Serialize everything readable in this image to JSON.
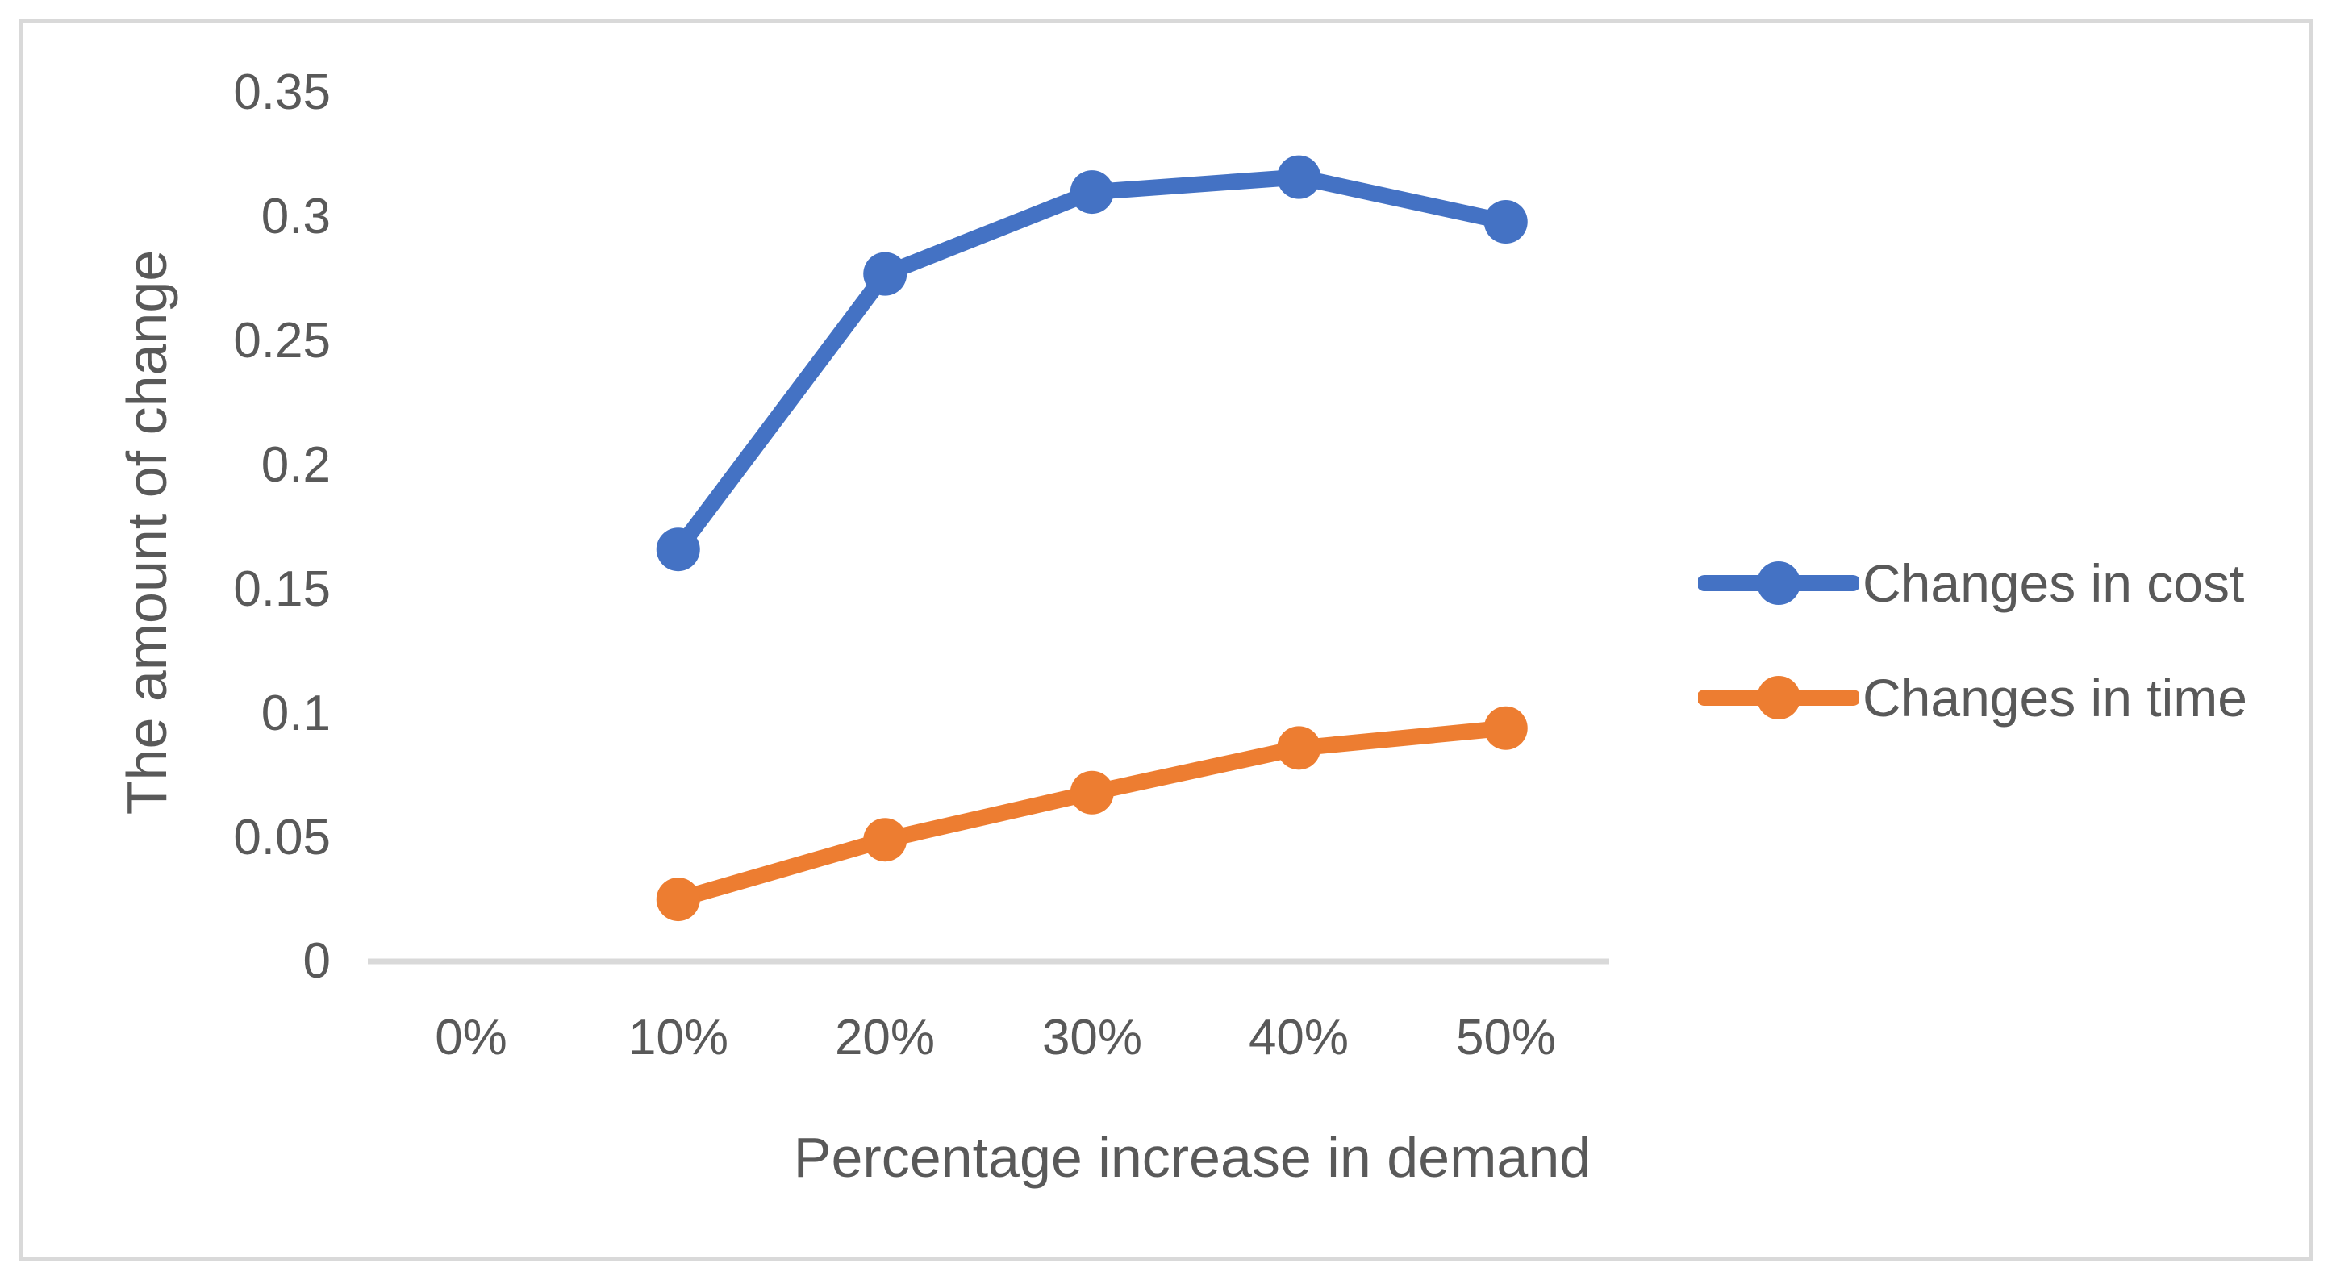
{
  "chart_data": {
    "type": "line",
    "title": "",
    "xlabel": "Percentage increase in demand",
    "ylabel": "The amount of change",
    "categories": [
      "0%",
      "10%",
      "20%",
      "30%",
      "40%",
      "50%"
    ],
    "series": [
      {
        "name": "Changes in cost",
        "color": "#4472C4",
        "values": [
          null,
          0.166,
          0.277,
          0.31,
          0.316,
          0.298
        ]
      },
      {
        "name": "Changes in time",
        "color": "#ED7D31",
        "values": [
          null,
          0.025,
          0.049,
          0.068,
          0.086,
          0.094
        ]
      }
    ],
    "y_ticks": [
      0,
      0.05,
      0.1,
      0.15,
      0.2,
      0.25,
      0.3,
      0.35
    ],
    "y_tick_labels_top_to_bottom": [
      "0.35",
      "0.3",
      "0.25",
      "0.2",
      "0.15",
      "0.1",
      "0.05",
      "0"
    ],
    "ylim": [
      0,
      0.35
    ],
    "grid": false,
    "legend_position": "right",
    "axis_line_color": "#D9D9D9",
    "text_color": "#595959",
    "frame_border_color": "#D9D9D9",
    "marker_style": "circle"
  }
}
